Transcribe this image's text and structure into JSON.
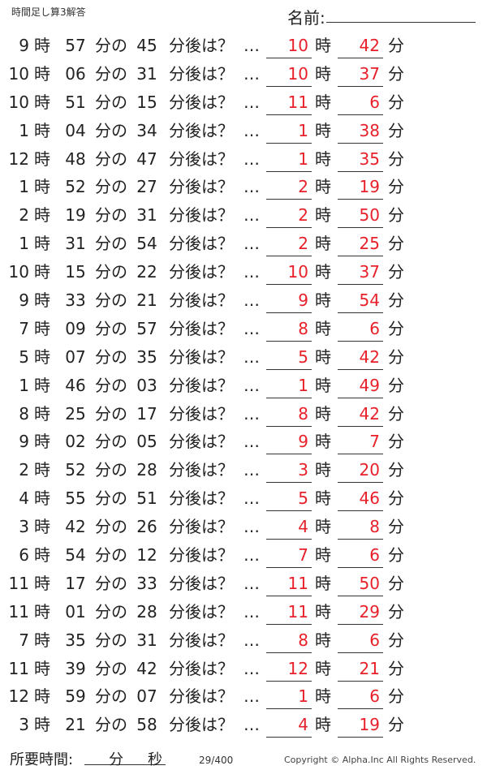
{
  "header": {
    "title": "時間足し算3解答",
    "name_label": "名前:"
  },
  "labels": {
    "hour": "時",
    "min_of": "分の",
    "min_after": "分後は？",
    "dots": "…",
    "hour_ans": "時",
    "min_ans": "分"
  },
  "accent_color": "#e8202a",
  "rows": [
    {
      "h": "9",
      "m": "57",
      "add": "45",
      "ah": "10",
      "am": "42"
    },
    {
      "h": "10",
      "m": "06",
      "add": "31",
      "ah": "10",
      "am": "37"
    },
    {
      "h": "10",
      "m": "51",
      "add": "15",
      "ah": "11",
      "am": "6"
    },
    {
      "h": "1",
      "m": "04",
      "add": "34",
      "ah": "1",
      "am": "38"
    },
    {
      "h": "12",
      "m": "48",
      "add": "47",
      "ah": "1",
      "am": "35"
    },
    {
      "h": "1",
      "m": "52",
      "add": "27",
      "ah": "2",
      "am": "19"
    },
    {
      "h": "2",
      "m": "19",
      "add": "31",
      "ah": "2",
      "am": "50"
    },
    {
      "h": "1",
      "m": "31",
      "add": "54",
      "ah": "2",
      "am": "25"
    },
    {
      "h": "10",
      "m": "15",
      "add": "22",
      "ah": "10",
      "am": "37"
    },
    {
      "h": "9",
      "m": "33",
      "add": "21",
      "ah": "9",
      "am": "54"
    },
    {
      "h": "7",
      "m": "09",
      "add": "57",
      "ah": "8",
      "am": "6"
    },
    {
      "h": "5",
      "m": "07",
      "add": "35",
      "ah": "5",
      "am": "42"
    },
    {
      "h": "1",
      "m": "46",
      "add": "03",
      "ah": "1",
      "am": "49"
    },
    {
      "h": "8",
      "m": "25",
      "add": "17",
      "ah": "8",
      "am": "42"
    },
    {
      "h": "9",
      "m": "02",
      "add": "05",
      "ah": "9",
      "am": "7"
    },
    {
      "h": "2",
      "m": "52",
      "add": "28",
      "ah": "3",
      "am": "20"
    },
    {
      "h": "4",
      "m": "55",
      "add": "51",
      "ah": "5",
      "am": "46"
    },
    {
      "h": "3",
      "m": "42",
      "add": "26",
      "ah": "4",
      "am": "8"
    },
    {
      "h": "6",
      "m": "54",
      "add": "12",
      "ah": "7",
      "am": "6"
    },
    {
      "h": "11",
      "m": "17",
      "add": "33",
      "ah": "11",
      "am": "50"
    },
    {
      "h": "11",
      "m": "01",
      "add": "28",
      "ah": "11",
      "am": "29"
    },
    {
      "h": "7",
      "m": "35",
      "add": "31",
      "ah": "8",
      "am": "6"
    },
    {
      "h": "11",
      "m": "39",
      "add": "42",
      "ah": "12",
      "am": "21"
    },
    {
      "h": "12",
      "m": "59",
      "add": "07",
      "ah": "1",
      "am": "6"
    },
    {
      "h": "3",
      "m": "21",
      "add": "58",
      "ah": "4",
      "am": "19"
    }
  ],
  "footer": {
    "required_time": "所要時間:",
    "min": "分",
    "sec": "秒",
    "page": "29/400",
    "copyright": "Copyright ©  Alpha.Inc All Rights Reserved."
  }
}
